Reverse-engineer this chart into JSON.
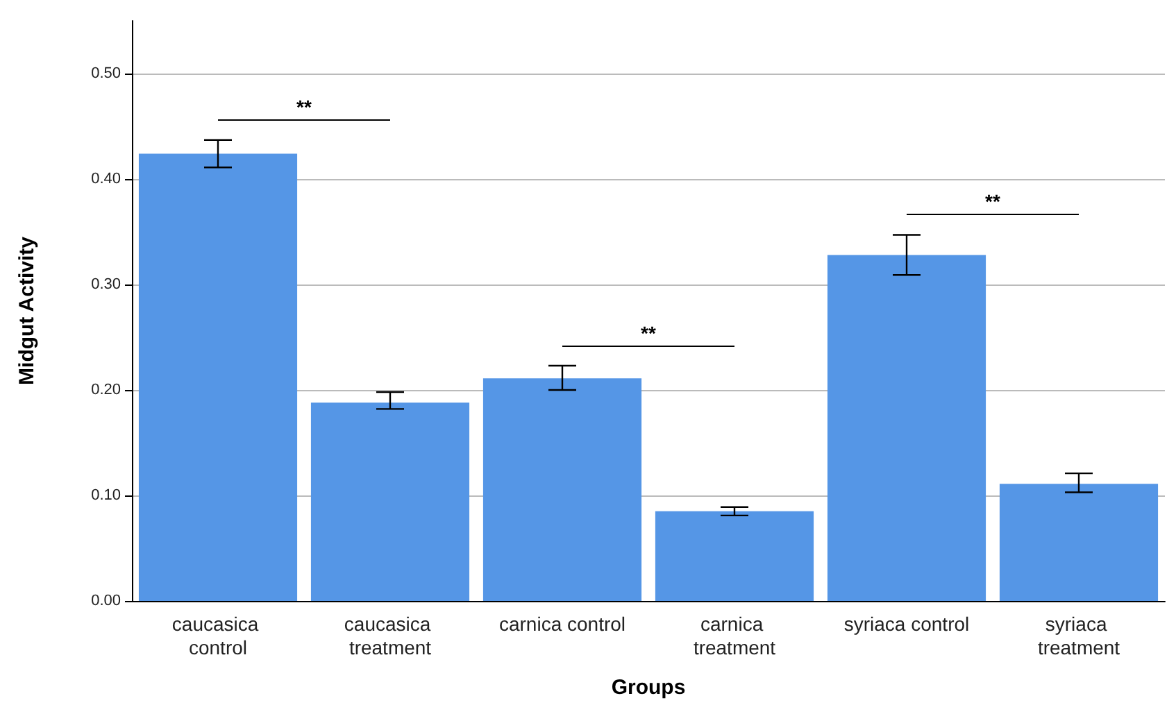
{
  "chart_data": {
    "type": "bar",
    "xlabel": "Groups",
    "ylabel": "Midgut Activity",
    "categories": [
      "caucasica control",
      "caucasica treatment",
      "carnica control",
      "carnica treatment",
      "syriaca control",
      "syriaca treatment"
    ],
    "values": [
      0.424,
      0.188,
      0.211,
      0.085,
      0.328,
      0.111
    ],
    "errors": [
      [
        0.411,
        0.437
      ],
      [
        0.182,
        0.198
      ],
      [
        0.2,
        0.223
      ],
      [
        0.081,
        0.089
      ],
      [
        0.309,
        0.347
      ],
      [
        0.103,
        0.121
      ]
    ],
    "color": "#5596e6",
    "ylim": [
      0,
      0.55
    ],
    "yticks": [
      {
        "value": 0,
        "label": "0.00"
      },
      {
        "value": 0.1,
        "label": "0.10"
      },
      {
        "value": 0.2,
        "label": "0.20"
      },
      {
        "value": 0.3,
        "label": "0.30"
      },
      {
        "value": 0.4,
        "label": "0.40"
      },
      {
        "value": 0.5,
        "label": "0.50"
      }
    ],
    "grid": "y",
    "annotations": [
      "**",
      "**",
      "**"
    ]
  }
}
